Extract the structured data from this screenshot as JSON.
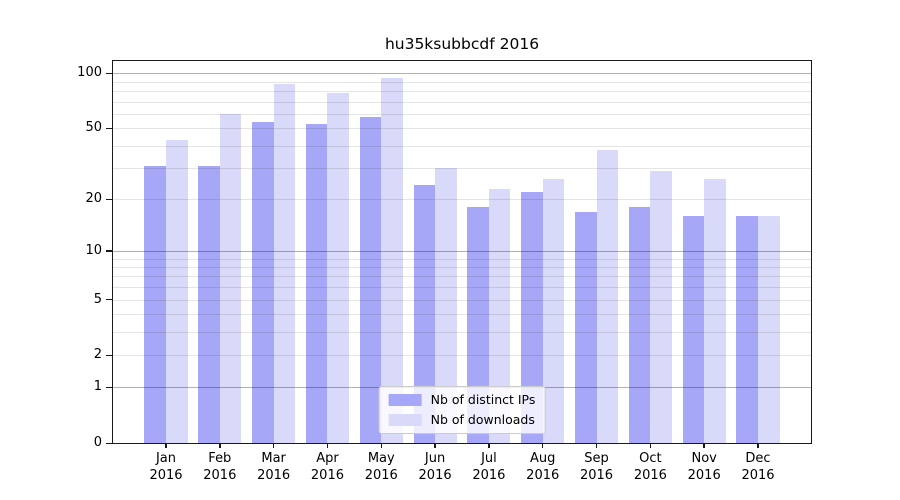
{
  "chart_data": {
    "type": "bar",
    "title": "hu35ksubbcdf 2016",
    "x": {
      "months": [
        "Jan",
        "Feb",
        "Mar",
        "Apr",
        "May",
        "Jun",
        "Jul",
        "Aug",
        "Sep",
        "Oct",
        "Nov",
        "Dec"
      ],
      "year": "2016"
    },
    "series": [
      {
        "name": "Nb of distinct IPs",
        "color": "#a7a7f7",
        "values": [
          31,
          31,
          54,
          53,
          58,
          24,
          18,
          22,
          17,
          18,
          16,
          16
        ]
      },
      {
        "name": "Nb of downloads",
        "color": "#d9d9f9",
        "values": [
          43,
          60,
          88,
          78,
          94,
          30,
          23,
          26,
          38,
          29,
          26,
          16
        ]
      }
    ],
    "y_axis": {
      "scale": "log1p",
      "ticks": [
        0,
        1,
        2,
        5,
        10,
        20,
        50,
        100
      ],
      "major_gridlines": [
        1,
        10,
        100
      ],
      "minor_gridlines": [
        2,
        3,
        4,
        5,
        6,
        7,
        8,
        9,
        20,
        30,
        40,
        50,
        60,
        70,
        80,
        90
      ],
      "max": 117
    },
    "legend": {
      "position": "lower center"
    },
    "style": {
      "major_grid_color": "rgba(0,0,0,0.30)",
      "minor_grid_color": "rgba(0,0,0,0.10)",
      "spine_color": "#1a1a1a",
      "background": "#ffffff"
    }
  }
}
